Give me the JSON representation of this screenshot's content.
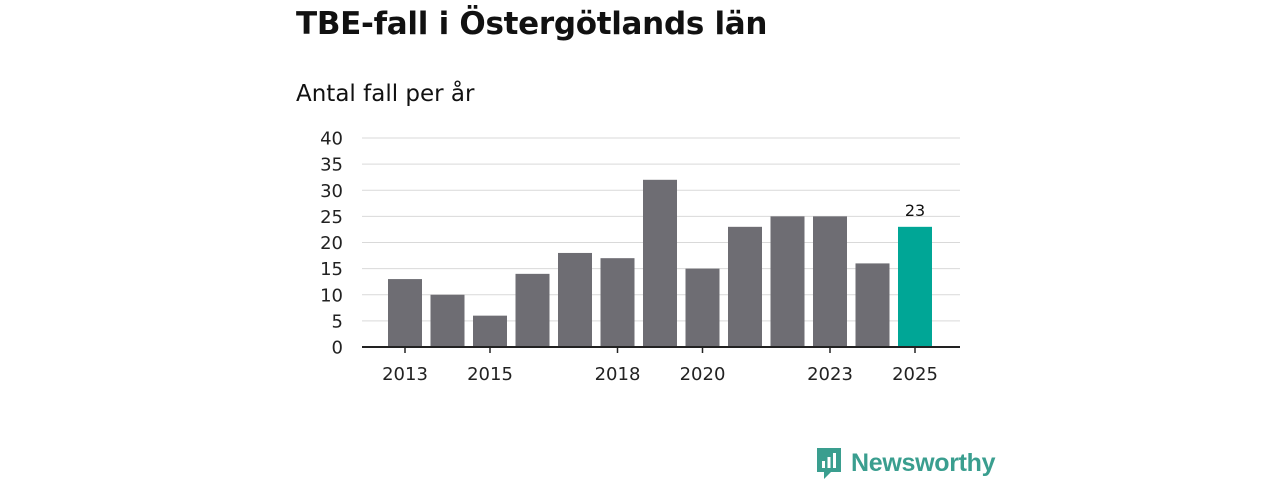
{
  "header": {
    "title": "TBE-fall i Östergötlands län",
    "subtitle": "Antal fall per år"
  },
  "chart_data": {
    "type": "bar",
    "title": "TBE-fall i Östergötlands län",
    "subtitle": "Antal fall per år",
    "xlabel": "",
    "ylabel": "",
    "categories": [
      "2013",
      "2014",
      "2015",
      "2016",
      "2017",
      "2018",
      "2019",
      "2020",
      "2021",
      "2022",
      "2023",
      "2024",
      "2025"
    ],
    "values": [
      13,
      10,
      6,
      14,
      18,
      17,
      32,
      15,
      23,
      25,
      25,
      16,
      23
    ],
    "x_tick_labels": [
      "2013",
      "",
      "2015",
      "",
      "",
      "2018",
      "",
      "2020",
      "",
      "",
      "2023",
      "",
      "2025"
    ],
    "ylim": [
      0,
      40
    ],
    "y_ticks": [
      0,
      5,
      10,
      15,
      20,
      25,
      30,
      35,
      40
    ],
    "grid": true,
    "highlight_index": 12,
    "annotations": [
      {
        "category": "2025",
        "text": "23"
      }
    ],
    "colors": {
      "bar": "#6e6d73",
      "highlight": "#00a696",
      "grid": "#d9d9d9",
      "axis": "#222222"
    }
  },
  "brand": {
    "name": "Newsworthy",
    "icon": "newsworthy-logo-icon",
    "color": "#3a9e8f"
  }
}
